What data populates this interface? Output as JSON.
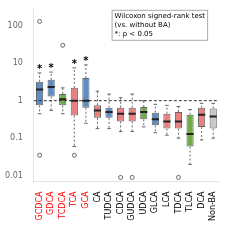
{
  "chart_data": {
    "type": "box",
    "categories": [
      "GCDCA",
      "GDCA",
      "TCDCA",
      "TCA",
      "GCA",
      "CA",
      "TUDCA",
      "CDCA",
      "GUDCA",
      "UDCA",
      "GLCA",
      "LCA",
      "TDCA",
      "TLCA",
      "DCA",
      "Non-BA"
    ],
    "boxes": [
      {
        "q1": 0.75,
        "median": 2.0,
        "q3": 3.2,
        "whislo": 0.45,
        "whishi": 5.5,
        "fliers": [
          0.035,
          130.0
        ]
      },
      {
        "q1": 1.3,
        "median": 2.3,
        "q3": 3.6,
        "whislo": 0.55,
        "whishi": 5.8,
        "fliers": []
      },
      {
        "q1": 0.75,
        "median": 1.1,
        "q3": 1.5,
        "whislo": 0.45,
        "whishi": 2.2,
        "fliers": [
          30.0
        ]
      },
      {
        "q1": 0.4,
        "median": 1.0,
        "q3": 2.2,
        "whislo": 0.06,
        "whishi": 7.5,
        "fliers": [
          0.035
        ]
      },
      {
        "q1": 0.65,
        "median": 1.0,
        "q3": 4.0,
        "whislo": 0.25,
        "whishi": 9.0,
        "fliers": []
      },
      {
        "q1": 0.35,
        "median": 0.55,
        "q3": 0.75,
        "whislo": 0.18,
        "whishi": 1.8,
        "fliers": []
      },
      {
        "q1": 0.35,
        "median": 0.5,
        "q3": 0.65,
        "whislo": 0.18,
        "whishi": 1.5,
        "fliers": []
      },
      {
        "q1": 0.28,
        "median": 0.45,
        "q3": 0.65,
        "whislo": 0.15,
        "whishi": 1.2,
        "fliers": [
          0.009
        ]
      },
      {
        "q1": 0.28,
        "median": 0.45,
        "q3": 0.65,
        "whislo": 0.15,
        "whishi": 1.5,
        "fliers": [
          0.009
        ]
      },
      {
        "q1": 0.32,
        "median": 0.5,
        "q3": 0.68,
        "whislo": 0.2,
        "whishi": 1.0,
        "fliers": []
      },
      {
        "q1": 0.22,
        "median": 0.32,
        "q3": 0.48,
        "whislo": 0.14,
        "whishi": 0.8,
        "fliers": []
      },
      {
        "q1": 0.18,
        "median": 0.28,
        "q3": 0.45,
        "whislo": 0.12,
        "whishi": 0.75,
        "fliers": []
      },
      {
        "q1": 0.18,
        "median": 0.28,
        "q3": 0.5,
        "whislo": 0.1,
        "whishi": 0.7,
        "fliers": [
          0.009
        ]
      },
      {
        "q1": 0.06,
        "median": 0.13,
        "q3": 0.42,
        "whislo": 0.02,
        "whishi": 0.58,
        "fliers": []
      },
      {
        "q1": 0.2,
        "median": 0.42,
        "q3": 0.65,
        "whislo": 0.09,
        "whishi": 0.85,
        "fliers": []
      },
      {
        "q1": 0.18,
        "median": 0.38,
        "q3": 0.62,
        "whislo": 0.1,
        "whishi": 0.85,
        "fliers": []
      }
    ],
    "colors": [
      "#5B8EC4",
      "#5B8EC4",
      "#70AD47",
      "#E88080",
      "#5B8EC4",
      "#E88080",
      "#5B8EC4",
      "#E88080",
      "#E88080",
      "#70AD47",
      "#5B8EC4",
      "#E88080",
      "#E88080",
      "#70AD47",
      "#E88080",
      "#C8C8C8"
    ],
    "label_colors": [
      "red",
      "red",
      "red",
      "red",
      "red",
      "black",
      "black",
      "black",
      "black",
      "black",
      "black",
      "black",
      "black",
      "black",
      "black",
      "black"
    ],
    "log": "y",
    "ylim": [
      0.007,
      300
    ],
    "yticks": [
      0.01,
      0.1,
      1,
      10,
      100
    ],
    "reference_line": 1.0,
    "annotations": [
      {
        "text": "Wilcoxon signed-rank test\n(vs. without BA)\n*: p < 0.05"
      },
      {
        "text": "*",
        "category": "GCDCA"
      },
      {
        "text": "*",
        "category": "GDCA"
      },
      {
        "text": "*",
        "category": "TCA"
      },
      {
        "text": "*",
        "category": "GCA"
      }
    ],
    "grid": false
  }
}
